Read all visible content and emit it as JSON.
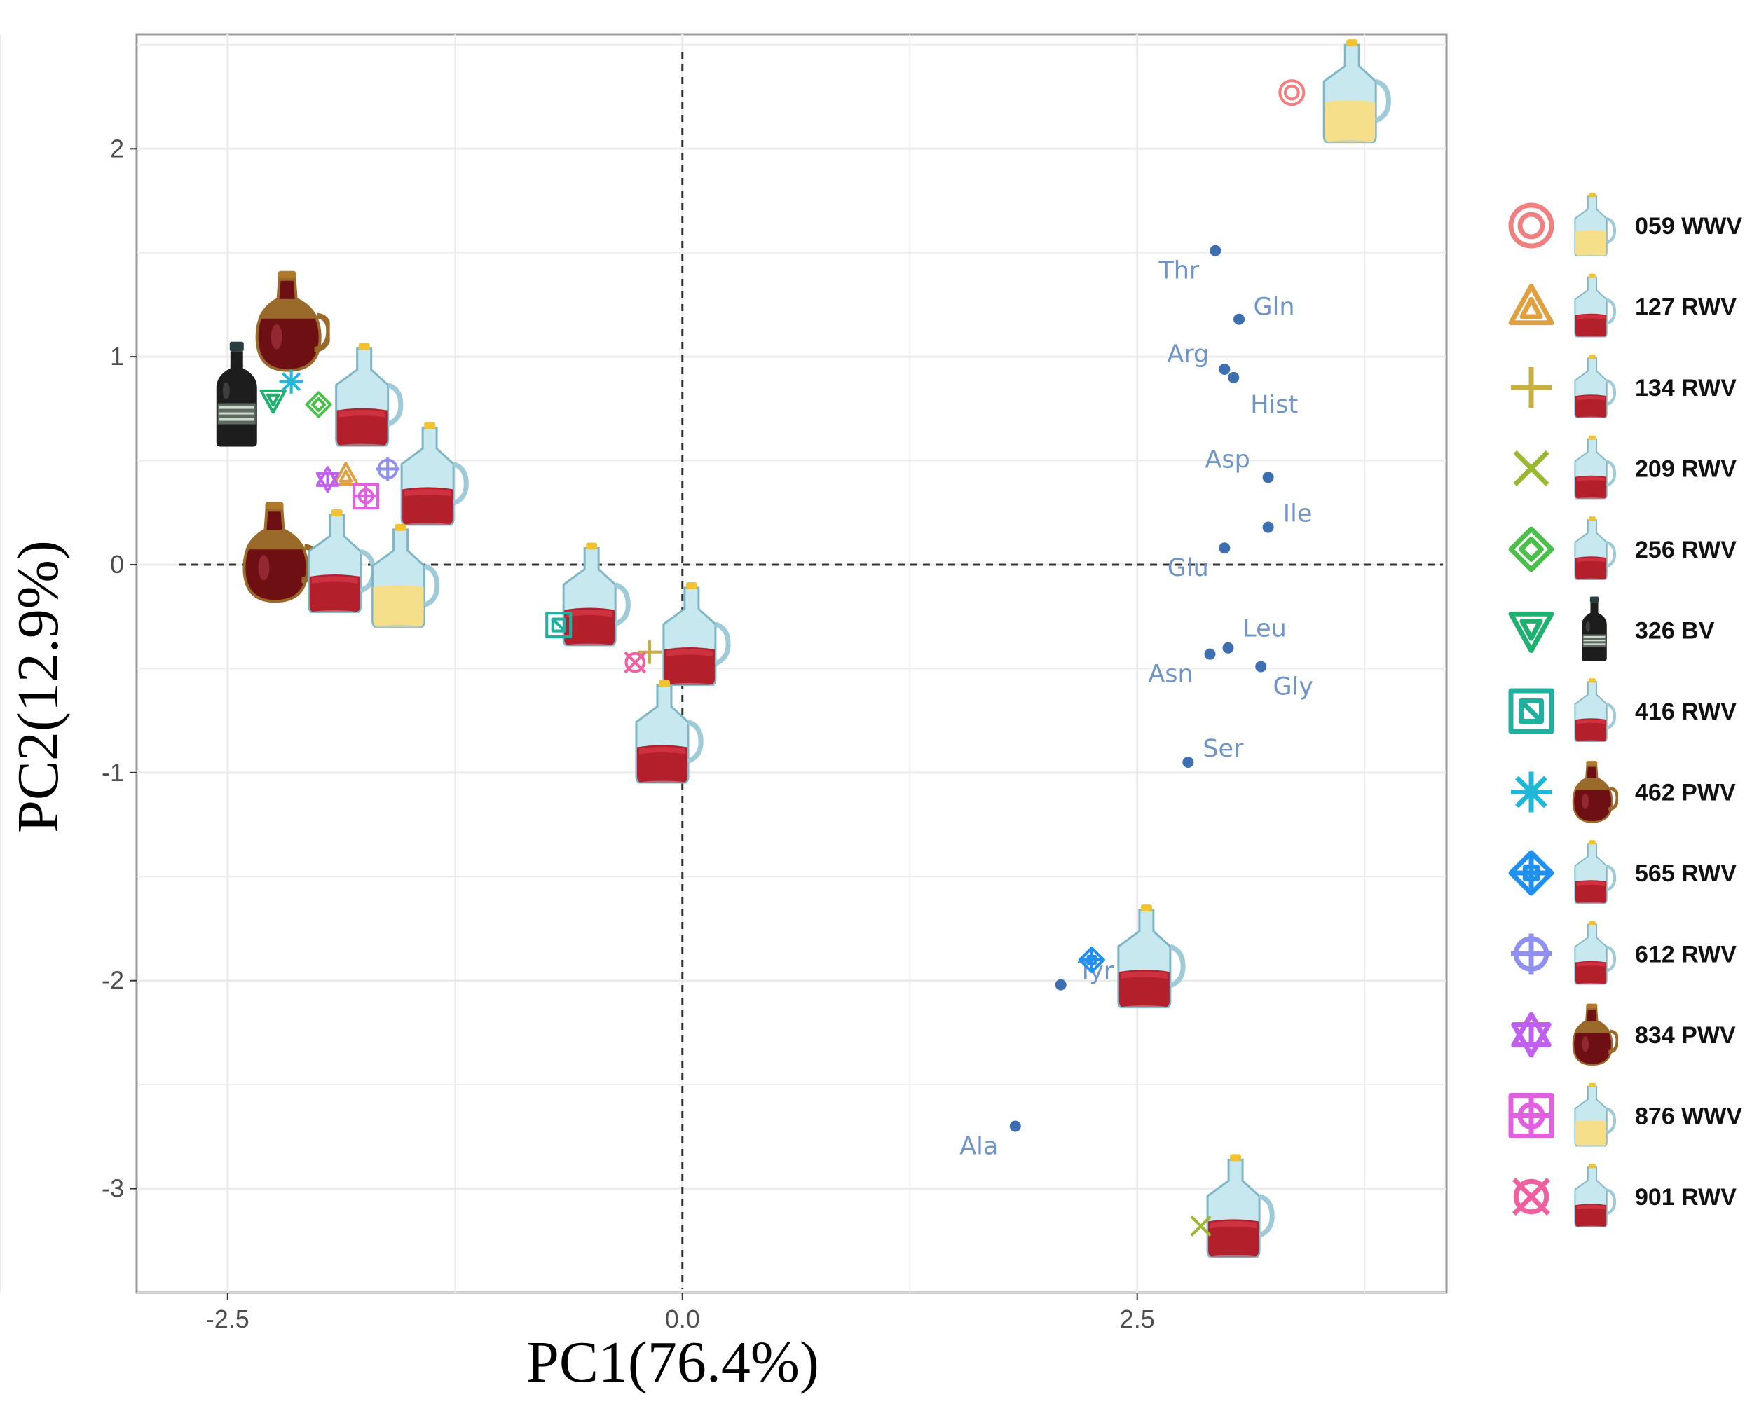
{
  "chart_data": {
    "type": "scatter",
    "xlabel": "PC1(76.4%)",
    "ylabel": "PC2(12.9%)",
    "xlim": [
      -3.0,
      4.2
    ],
    "ylim": [
      -3.5,
      2.55
    ],
    "x_ticks": [
      -2.5,
      0.0,
      2.5
    ],
    "y_ticks": [
      2,
      1,
      0,
      -1,
      -2,
      -3
    ],
    "x_tick_labels": [
      "-2.5",
      "0.0",
      "2.5"
    ],
    "y_tick_labels": [
      "2",
      "1",
      "0",
      "-1",
      "-2",
      "-3"
    ],
    "grid": true,
    "reference_lines": {
      "x": 0,
      "y": 0,
      "style": "dashed"
    },
    "legend_position": "right",
    "series": [
      {
        "name": "059 WWV",
        "marker": "circle-double",
        "color": "#f08080",
        "points": [
          [
            3.35,
            2.27
          ]
        ]
      },
      {
        "name": "127 RWV",
        "marker": "triangle",
        "color": "#e0a040",
        "points": [
          [
            -1.85,
            0.43
          ]
        ]
      },
      {
        "name": "134 RWV",
        "marker": "plus",
        "color": "#c8b040",
        "points": [
          [
            -0.18,
            -0.42
          ]
        ]
      },
      {
        "name": "209 RWV",
        "marker": "x",
        "color": "#9ab830",
        "points": [
          [
            2.85,
            -3.18
          ]
        ]
      },
      {
        "name": "256 RWV",
        "marker": "diamond",
        "color": "#4ac04a",
        "points": [
          [
            -2.0,
            0.77
          ]
        ]
      },
      {
        "name": "326 BV",
        "marker": "triangle-down",
        "color": "#20b070",
        "points": [
          [
            -2.25,
            0.79
          ]
        ]
      },
      {
        "name": "416  RWV",
        "marker": "square-framed",
        "color": "#20b0a0",
        "points": [
          [
            -0.68,
            -0.29
          ]
        ]
      },
      {
        "name": "462 PWV",
        "marker": "asterisk",
        "color": "#20b8d8",
        "points": [
          [
            -2.15,
            0.88
          ]
        ]
      },
      {
        "name": "565 RWV",
        "marker": "diamond-plus",
        "color": "#2090f0",
        "points": [
          [
            2.25,
            -1.9
          ]
        ]
      },
      {
        "name": "612 RWV",
        "marker": "circle-plus",
        "color": "#9090f0",
        "points": [
          [
            -1.62,
            0.46
          ]
        ]
      },
      {
        "name": "834 PWV",
        "marker": "star",
        "color": "#c060f0",
        "points": [
          [
            -1.95,
            0.41
          ]
        ]
      },
      {
        "name": "876 WWV",
        "marker": "square-plus",
        "color": "#e060e0",
        "points": [
          [
            -1.74,
            0.33
          ]
        ]
      },
      {
        "name": "901 RWV",
        "marker": "circle-x",
        "color": "#f060a0",
        "points": [
          [
            -0.26,
            -0.47
          ]
        ]
      }
    ],
    "loadings": [
      {
        "label": "Thr",
        "x": 2.93,
        "y": 1.51
      },
      {
        "label": "Gln",
        "x": 3.06,
        "y": 1.18
      },
      {
        "label": "Arg",
        "x": 2.98,
        "y": 0.94
      },
      {
        "label": "Hist",
        "x": 3.03,
        "y": 0.9
      },
      {
        "label": "Asp",
        "x": 3.22,
        "y": 0.42
      },
      {
        "label": "Ile",
        "x": 3.22,
        "y": 0.18
      },
      {
        "label": "Glu",
        "x": 2.98,
        "y": 0.08
      },
      {
        "label": "Leu",
        "x": 3.0,
        "y": -0.4
      },
      {
        "label": "Asn",
        "x": 2.9,
        "y": -0.43
      },
      {
        "label": "Gly",
        "x": 3.18,
        "y": -0.49
      },
      {
        "label": "Ser",
        "x": 2.78,
        "y": -0.95
      },
      {
        "label": "Tyr",
        "x": 2.08,
        "y": -2.02
      },
      {
        "label": "Ala",
        "x": 1.83,
        "y": -2.7
      }
    ],
    "sample_icons": [
      {
        "type": "white",
        "x": 3.7,
        "y": 2.28
      },
      {
        "type": "port",
        "x": -2.15,
        "y": 1.18
      },
      {
        "type": "balsamic",
        "x": -2.45,
        "y": 0.82
      },
      {
        "type": "red",
        "x": -1.73,
        "y": 0.82
      },
      {
        "type": "red",
        "x": -1.37,
        "y": 0.44
      },
      {
        "type": "port",
        "x": -2.22,
        "y": 0.07
      },
      {
        "type": "red",
        "x": -1.88,
        "y": 0.02
      },
      {
        "type": "white",
        "x": -1.53,
        "y": -0.05
      },
      {
        "type": "red",
        "x": -0.48,
        "y": -0.14
      },
      {
        "type": "red",
        "x": 0.07,
        "y": -0.33
      },
      {
        "type": "red",
        "x": -0.08,
        "y": -0.8
      },
      {
        "type": "red",
        "x": 2.57,
        "y": -1.88
      },
      {
        "type": "red",
        "x": 3.06,
        "y": -3.08
      }
    ]
  },
  "legend": {
    "items": [
      {
        "label": "059 WWV",
        "icon": "white"
      },
      {
        "label": "127 RWV",
        "icon": "red"
      },
      {
        "label": "134 RWV",
        "icon": "red"
      },
      {
        "label": "209 RWV",
        "icon": "red"
      },
      {
        "label": "256 RWV",
        "icon": "red"
      },
      {
        "label": "326 BV",
        "icon": "balsamic"
      },
      {
        "label": "416  RWV",
        "icon": "red"
      },
      {
        "label": "462 PWV",
        "icon": "port"
      },
      {
        "label": "565 RWV",
        "icon": "red"
      },
      {
        "label": "612 RWV",
        "icon": "red"
      },
      {
        "label": "834 PWV",
        "icon": "port"
      },
      {
        "label": "876 WWV",
        "icon": "white"
      },
      {
        "label": "901 RWV",
        "icon": "red"
      }
    ]
  },
  "colors": {
    "loading_dot": "#3d6fb0",
    "loading_text": "#6f94c8",
    "grid": "#ebebeb",
    "panel_border": "#9a9a9a",
    "red_liquid": "#b3202c",
    "white_liquid": "#f6df8a",
    "port_liquid": "#6e0f14",
    "port_body": "#9a6a2a",
    "bottle_glass": "#c8e8f0",
    "balsamic_body": "#1d1d1d"
  }
}
